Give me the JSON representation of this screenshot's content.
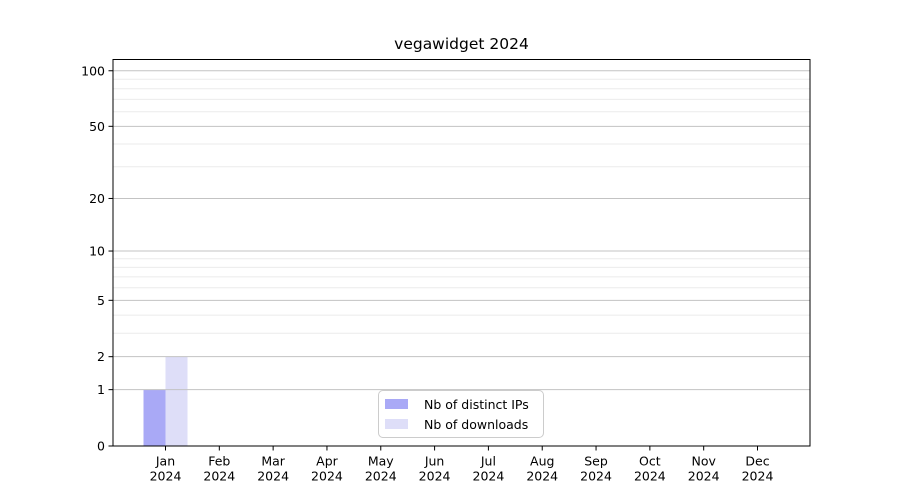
{
  "chart_data": {
    "type": "bar",
    "title": "vegawidget 2024",
    "categories": [
      "Jan",
      "Feb",
      "Mar",
      "Apr",
      "May",
      "Jun",
      "Jul",
      "Aug",
      "Sep",
      "Oct",
      "Nov",
      "Dec"
    ],
    "x_tick_year_line": "2024",
    "series": [
      {
        "name": "Nb of distinct IPs",
        "color": "#a9a9f6",
        "values": [
          1,
          0,
          0,
          0,
          0,
          0,
          0,
          0,
          0,
          0,
          0,
          0
        ]
      },
      {
        "name": "Nb of downloads",
        "color": "#dedef8",
        "values": [
          2,
          0,
          0,
          0,
          0,
          0,
          0,
          0,
          0,
          0,
          0,
          0
        ]
      }
    ],
    "yscale": "symlog",
    "ylim": [
      0,
      115
    ],
    "y_major_ticks": [
      0,
      1,
      2,
      5,
      10,
      20,
      50,
      100
    ],
    "y_minor_gridlines": [
      3,
      4,
      6,
      7,
      8,
      9,
      30,
      40,
      60,
      70,
      80,
      90
    ],
    "grid": true,
    "legend_position": "bottom-center",
    "xlabel": "",
    "ylabel": "",
    "colors": {
      "background": "#ffffff",
      "axis": "#000000",
      "text": "#000000",
      "major_grid": "#c3c3c3",
      "minor_grid": "#ebebeb",
      "legend_border": "#cccccc",
      "legend_background": "#ffffff"
    }
  }
}
